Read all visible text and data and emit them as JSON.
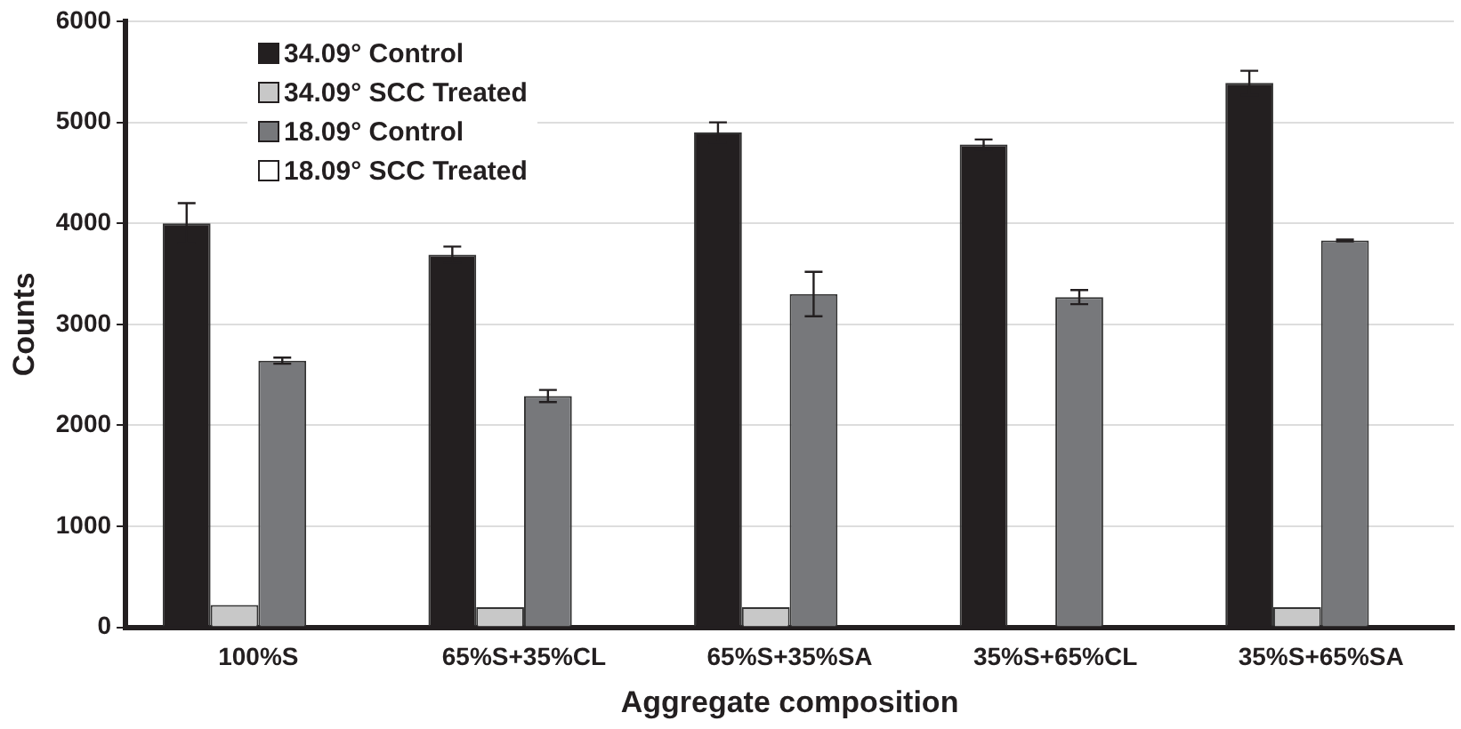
{
  "chart_data": {
    "type": "bar",
    "xlabel": "Aggregate composition",
    "ylabel": "Counts",
    "categories": [
      "100%S",
      "65%S+35%CL",
      "65%S+35%SA",
      "35%S+65%CL",
      "35%S+65%SA"
    ],
    "series": [
      {
        "name": "34.09° Control",
        "color": "#231f20",
        "values": [
          4000,
          3690,
          4900,
          4780,
          5390
        ],
        "errors": [
          200,
          80,
          100,
          50,
          120
        ]
      },
      {
        "name": "34.09° SCC Treated",
        "color": "#c8c8c8",
        "values": [
          220,
          200,
          200,
          null,
          200
        ]
      },
      {
        "name": "18.09° Control",
        "color": "#77787b",
        "values": [
          2640,
          2290,
          3300,
          3270,
          3830
        ],
        "errors": [
          30,
          60,
          220,
          70,
          10
        ]
      },
      {
        "name": "18.09° SCC Treated",
        "color": "#ffffff",
        "values": [
          null,
          null,
          null,
          null,
          null
        ]
      }
    ],
    "ylim": [
      0,
      6000
    ],
    "yticks": [
      0,
      1000,
      2000,
      3000,
      4000,
      5000,
      6000
    ],
    "grid": "y",
    "legend": "top left"
  }
}
